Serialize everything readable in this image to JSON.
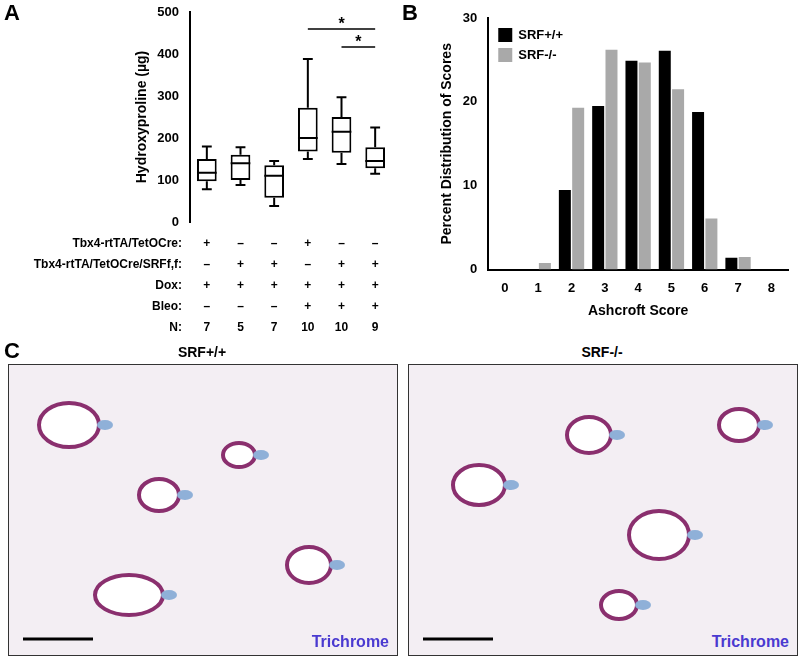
{
  "chart_data": [
    {
      "panel_label": "A",
      "type": "boxplot",
      "y_label": "Hydroxyproline (µg)",
      "ylim": [
        0,
        500
      ],
      "yticks": [
        0,
        100,
        200,
        300,
        400,
        500
      ],
      "grid": false,
      "color": "#000000",
      "boxes": [
        {
          "min": 78,
          "q1": 97,
          "median": 117,
          "q3": 150,
          "max": 180
        },
        {
          "min": 88,
          "q1": 100,
          "median": 140,
          "q3": 160,
          "max": 178
        },
        {
          "min": 38,
          "q1": 58,
          "median": 110,
          "q3": 135,
          "max": 145
        },
        {
          "min": 150,
          "q1": 168,
          "median": 200,
          "q3": 272,
          "max": 388
        },
        {
          "min": 138,
          "q1": 165,
          "median": 215,
          "q3": 250,
          "max": 297
        },
        {
          "min": 115,
          "q1": 128,
          "median": 145,
          "q3": 178,
          "max": 225
        }
      ],
      "conditions": [
        {
          "label": "Tbx4-rtTA/TetOCre:",
          "values": [
            "+",
            "–",
            "–",
            "+",
            "–",
            "–"
          ]
        },
        {
          "label": "Tbx4-rtTA/TetOCre/SRFf,f:",
          "values": [
            "–",
            "+",
            "+",
            "–",
            "+",
            "+"
          ]
        },
        {
          "label": "Dox:",
          "values": [
            "+",
            "+",
            "+",
            "+",
            "+",
            "+"
          ]
        },
        {
          "label": "Bleo:",
          "values": [
            "–",
            "–",
            "–",
            "+",
            "+",
            "+"
          ]
        },
        {
          "label": "N:",
          "values": [
            7,
            5,
            7,
            10,
            10,
            9
          ]
        }
      ],
      "comparisons": [
        {
          "groups": [
            3,
            5
          ],
          "label": "*"
        },
        {
          "groups": [
            4,
            5
          ],
          "label": "*"
        }
      ]
    },
    {
      "panel_label": "B",
      "type": "bar",
      "x_label": "Ashcroft Score",
      "y_label": "Percent Distribution of Scores",
      "categories": [
        "0",
        "1",
        "2",
        "3",
        "4",
        "5",
        "6",
        "7",
        "8"
      ],
      "ylim": [
        0,
        30
      ],
      "yticks": [
        0,
        10,
        20,
        30
      ],
      "grid": false,
      "legend": "upper left",
      "series": [
        {
          "name": "SRF+/+",
          "color": "#000000",
          "values": [
            0,
            0,
            9.5,
            19.5,
            24.9,
            26.1,
            18.8,
            1.4,
            0
          ]
        },
        {
          "name": "SRF-/-",
          "color": "#a9a9a9",
          "values": [
            0,
            0.8,
            19.3,
            26.2,
            24.7,
            21.5,
            6.1,
            1.5,
            0
          ]
        }
      ]
    }
  ],
  "images": {
    "panel_label": "C",
    "panels": [
      {
        "title": "SRF+/+",
        "stain": "Trichrome"
      },
      {
        "title": "SRF-/-",
        "stain": "Trichrome"
      }
    ]
  }
}
